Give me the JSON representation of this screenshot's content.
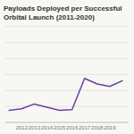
{
  "chart_data": {
    "type": "line",
    "title": "Payloads Deployed per Successful Orbital Launch (2011-2020)",
    "x": [
      2011,
      2012,
      2013,
      2014,
      2015,
      2016,
      2017,
      2018,
      2019,
      2020
    ],
    "values": [
      1.5,
      1.7,
      2.3,
      1.9,
      1.5,
      1.6,
      5.5,
      4.8,
      4.5,
      5.2
    ],
    "color": "#6b3fa0",
    "xlim": [
      2010.7,
      2020.5
    ],
    "xticks": [
      2012,
      2013,
      2014,
      2015,
      2016,
      2017,
      2018,
      2019
    ],
    "ylim": [
      0,
      12
    ],
    "yticks": [
      0,
      2,
      4,
      6,
      8,
      10,
      12
    ],
    "grid": true,
    "tick_labels": "x"
  }
}
